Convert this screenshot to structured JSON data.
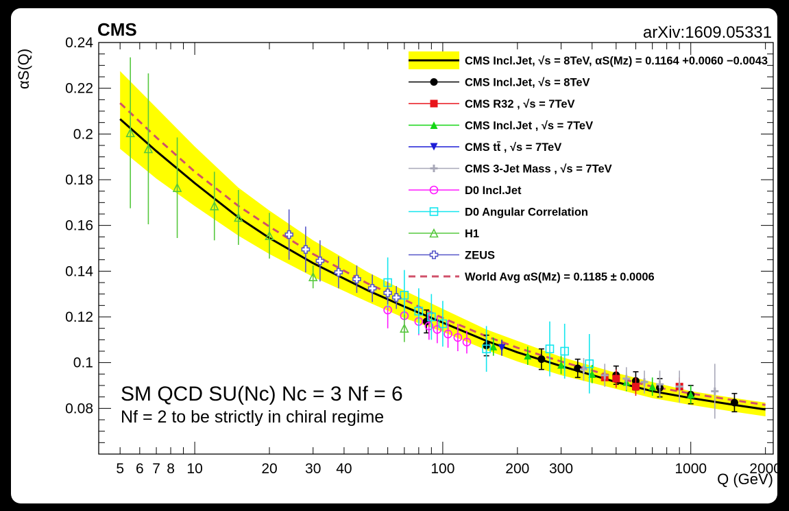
{
  "chart_data": {
    "type": "scatter",
    "experiment_label": "CMS",
    "reference": "arXiv:1609.05331",
    "xlabel": "Q (GeV)",
    "ylabel": "αS(Q)",
    "xscale": "log",
    "xlim": [
      4.1,
      2150
    ],
    "ylim": [
      0.06,
      0.24
    ],
    "x_ticks": [
      5,
      6,
      7,
      8,
      10,
      20,
      30,
      40,
      100,
      200,
      300,
      1000,
      2000
    ],
    "y_ticks": [
      0.08,
      0.1,
      0.12,
      0.14,
      0.16,
      0.18,
      0.2,
      0.22,
      0.24
    ],
    "annotation_line1": "SM QCD SU(Nc) Nc = 3 Nf = 6",
    "annotation_line2": "Nf = 2 to be strictly in chiral regime",
    "legend_placement": "top-right",
    "legend": [
      {
        "label": "CMS Incl.Jet,  √s = 8TeV,  αS(Mz) = 0.1164 +0.0060 −0.0043",
        "color": "#000000",
        "marker": "band"
      },
      {
        "label": "CMS Incl.Jet,  √s = 8TeV",
        "color": "#000000",
        "marker": "circle"
      },
      {
        "label": "CMS R32 ,  √s = 7TeV",
        "color": "#e8141b",
        "marker": "square"
      },
      {
        "label": "CMS Incl.Jet ,  √s = 7TeV",
        "color": "#14d614",
        "marker": "triangle-up"
      },
      {
        "label": "CMS tt̄ ,  √s = 7TeV",
        "color": "#1d1dd6",
        "marker": "triangle-down"
      },
      {
        "label": "CMS 3-Jet Mass ,  √s = 7TeV",
        "color": "#a8a8b8",
        "marker": "plus"
      },
      {
        "label": "D0 Incl.Jet",
        "color": "#ff16ff",
        "marker": "open-circle"
      },
      {
        "label": "D0 Angular Correlation",
        "color": "#12e6ee",
        "marker": "open-square"
      },
      {
        "label": "H1",
        "color": "#56c83e",
        "marker": "open-triangle"
      },
      {
        "label": "ZEUS",
        "color": "#5656c8",
        "marker": "open-cross"
      },
      {
        "label": "World Avg  αS(Mz) = 0.1185  ± 0.0006",
        "color": "#d0506a",
        "marker": "dashed"
      }
    ],
    "curves": {
      "cms_fit": {
        "x": [
          5,
          7,
          10,
          15,
          20,
          30,
          50,
          70,
          100,
          150,
          200,
          300,
          500,
          700,
          1000,
          1500,
          2000
        ],
        "y": [
          0.2065,
          0.1925,
          0.1785,
          0.1635,
          0.1545,
          0.1435,
          0.1315,
          0.1245,
          0.1175,
          0.1095,
          0.1045,
          0.0985,
          0.0915,
          0.0875,
          0.0845,
          0.0815,
          0.0795
        ]
      },
      "band_upper": [
        0.2275,
        0.2115,
        0.1945,
        0.1765,
        0.1665,
        0.1535,
        0.1395,
        0.1315,
        0.1235,
        0.1145,
        0.1095,
        0.1025,
        0.0955,
        0.0915,
        0.0875,
        0.0845,
        0.0825
      ],
      "band_lower": [
        0.1935,
        0.1805,
        0.1685,
        0.1555,
        0.1475,
        0.1375,
        0.1265,
        0.1195,
        0.1135,
        0.1055,
        0.1005,
        0.0945,
        0.0885,
        0.0845,
        0.0815,
        0.0785,
        0.0765
      ],
      "world_avg": {
        "x": [
          5,
          7,
          10,
          15,
          20,
          30,
          50,
          70,
          100,
          150,
          200,
          300,
          500,
          700,
          1000,
          1500,
          2000
        ],
        "y": [
          0.2135,
          0.1985,
          0.1835,
          0.1685,
          0.1595,
          0.1475,
          0.1345,
          0.1275,
          0.1195,
          0.1115,
          0.1065,
          0.1005,
          0.0935,
          0.0895,
          0.0865,
          0.0835,
          0.0815
        ]
      }
    },
    "series": [
      {
        "name": "CMS Incl.Jet,  √s = 8TeV",
        "x": [
          86,
          150,
          250,
          350,
          500,
          600,
          750,
          1000,
          1500
        ],
        "y": [
          0.118,
          0.1075,
          0.1015,
          0.0975,
          0.0945,
          0.092,
          0.089,
          0.086,
          0.0825
        ],
        "err": [
          0.005,
          0.0045,
          0.0045,
          0.004,
          0.004,
          0.004,
          0.004,
          0.004,
          0.004
        ]
      },
      {
        "name": "CMS R32 ,  √s = 7TeV",
        "x": [
          450,
          500,
          600,
          900
        ],
        "y": [
          0.0935,
          0.093,
          0.0895,
          0.0895
        ],
        "err": [
          0.004,
          0.004,
          0.004,
          0.004
        ]
      },
      {
        "name": "CMS Incl.Jet ,  √s = 7TeV",
        "x": [
          160,
          220,
          300,
          400,
          550,
          700,
          1000
        ],
        "y": [
          0.107,
          0.103,
          0.099,
          0.095,
          0.0915,
          0.0895,
          0.086
        ],
        "err": [
          0.004,
          0.004,
          0.004,
          0.004,
          0.004,
          0.004,
          0.004
        ]
      },
      {
        "name": "CMS tt̄ ,  √s = 7TeV",
        "x": [
          173
        ],
        "y": [
          0.1065
        ],
        "err": [
          0.0035
        ]
      },
      {
        "name": "CMS 3-Jet Mass ,  √s = 7TeV",
        "x": [
          370,
          450,
          550,
          650,
          750,
          900,
          1250
        ],
        "y": [
          0.097,
          0.0945,
          0.093,
          0.0915,
          0.0905,
          0.0895,
          0.0875
        ],
        "err": [
          0.005,
          0.005,
          0.005,
          0.005,
          0.006,
          0.007,
          0.012
        ]
      },
      {
        "name": "D0 Incl.Jet",
        "x": [
          60,
          70,
          80,
          88,
          95,
          105,
          115,
          125
        ],
        "y": [
          0.123,
          0.1205,
          0.118,
          0.116,
          0.1145,
          0.1125,
          0.111,
          0.109
        ],
        "err": [
          0.008,
          0.007,
          0.006,
          0.006,
          0.006,
          0.006,
          0.006,
          0.005
        ]
      },
      {
        "name": "D0 Angular Correlation",
        "x": [
          60,
          70,
          80,
          90,
          100,
          150,
          270,
          310,
          390
        ],
        "y": [
          0.135,
          0.1295,
          0.1225,
          0.12,
          0.117,
          0.106,
          0.106,
          0.105,
          0.0995
        ],
        "err": [
          0.011,
          0.011,
          0.01,
          0.01,
          0.01,
          0.01,
          0.012,
          0.012,
          0.013
        ]
      },
      {
        "name": "H1",
        "x": [
          5.5,
          6.5,
          8.5,
          12,
          15,
          20,
          30,
          70
        ],
        "y": [
          0.2005,
          0.1935,
          0.1765,
          0.1685,
          0.1635,
          0.1555,
          0.1375,
          0.115
        ],
        "err": [
          0.033,
          0.033,
          0.022,
          0.015,
          0.012,
          0.01,
          0.005,
          0.006
        ]
      },
      {
        "name": "ZEUS",
        "x": [
          24,
          28,
          32,
          38,
          45,
          52,
          60,
          65
        ],
        "y": [
          0.156,
          0.1495,
          0.1445,
          0.1395,
          0.1365,
          0.1325,
          0.1305,
          0.1285
        ],
        "err": [
          0.011,
          0.01,
          0.009,
          0.007,
          0.006,
          0.006,
          0.005,
          0.005
        ]
      }
    ]
  }
}
